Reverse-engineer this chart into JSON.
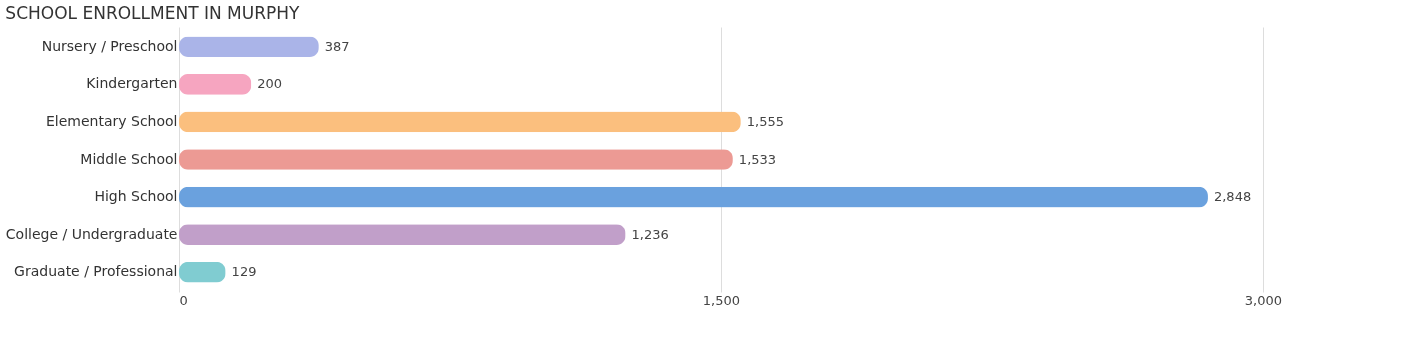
{
  "chart_data": {
    "type": "bar",
    "orientation": "horizontal",
    "title": "SCHOOL ENROLLMENT IN MURPHY",
    "categories": [
      "Nursery / Preschool",
      "Kindergarten",
      "Elementary School",
      "Middle School",
      "High School",
      "College / Undergraduate",
      "Graduate / Professional"
    ],
    "values": [
      387,
      200,
      1555,
      1533,
      2848,
      1236,
      129
    ],
    "colors": [
      "#aab4e8",
      "#f6a5c0",
      "#fbbf7e",
      "#ec9a94",
      "#6aa1de",
      "#c19fc9",
      "#80ccd1"
    ],
    "value_labels": [
      "387",
      "200",
      "1,555",
      "1,533",
      "2,848",
      "1,236",
      "129"
    ],
    "xlim": [
      0,
      3100
    ],
    "xticks": [
      0,
      {
        "value": 1500,
        "label": "1,500"
      },
      {
        "value": 3000,
        "label": "3,000"
      }
    ],
    "grid": "x"
  }
}
